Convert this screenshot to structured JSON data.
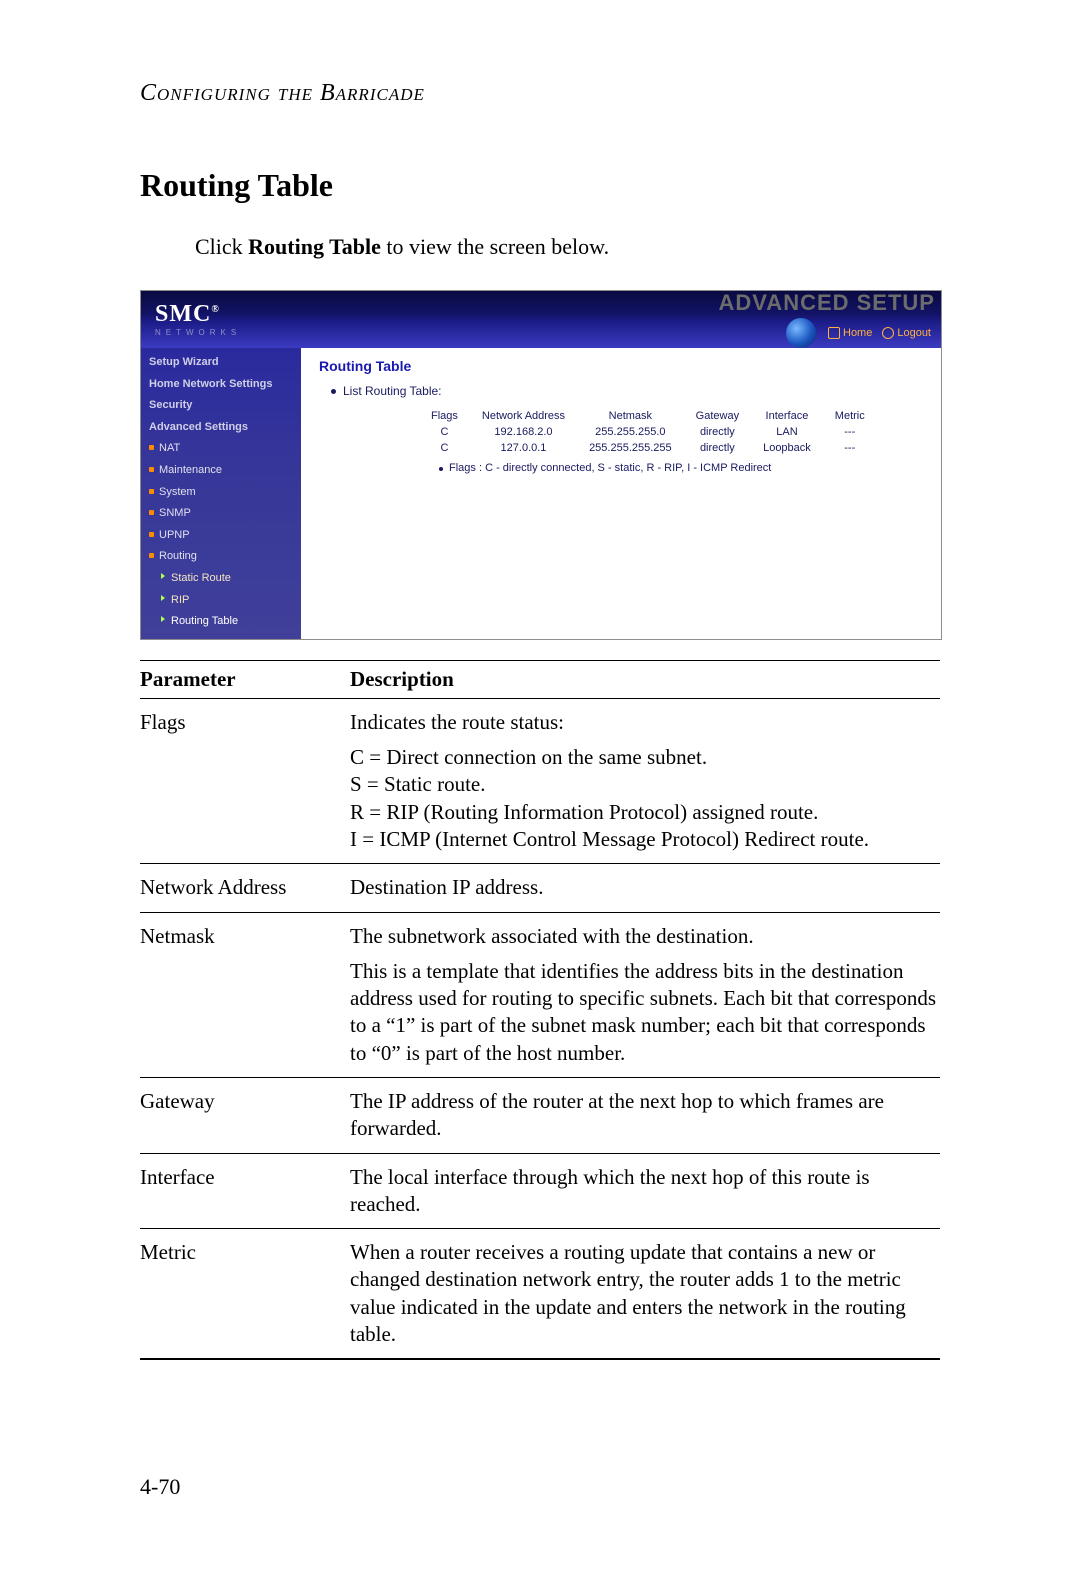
{
  "doc": {
    "running_head": "Configuring the Barricade",
    "section_title": "Routing Table",
    "intro_pre": "Click ",
    "intro_bold": "Routing Table",
    "intro_post": " to view the screen below.",
    "page_num": "4-70"
  },
  "screenshot": {
    "logo_main": "SMC",
    "logo_reg": "®",
    "logo_sub": "Networks",
    "header_title": "ADVANCED SETUP",
    "links": {
      "home": "Home",
      "logout": "Logout"
    },
    "sidebar": {
      "setup_wizard": "Setup Wizard",
      "home_network_settings": "Home Network Settings",
      "security": "Security",
      "advanced_settings": "Advanced Settings",
      "nat": "NAT",
      "maintenance": "Maintenance",
      "system": "System",
      "snmp": "SNMP",
      "upnp": "UPNP",
      "routing": "Routing",
      "static_route": "Static Route",
      "rip": "RIP",
      "routing_table": "Routing Table"
    },
    "main": {
      "title": "Routing Table",
      "bullet": "List Routing Table:",
      "table": {
        "columns": [
          "Flags",
          "Network Address",
          "Netmask",
          "Gateway",
          "Interface",
          "Metric"
        ],
        "rows": [
          [
            "C",
            "192.168.2.0",
            "255.255.255.0",
            "directly",
            "LAN",
            "---"
          ],
          [
            "C",
            "127.0.0.1",
            "255.255.255.255",
            "directly",
            "Loopback",
            "---"
          ]
        ]
      },
      "legend": "Flags :  C - directly connected, S - static, R - RIP, I - ICMP Redirect"
    },
    "colors": {
      "top_bg_dark": "#0a0a40",
      "top_bg_light": "#3a3ac0",
      "sidebar_bg": "#363699",
      "adv_text": "#6c6c6c",
      "link_color": "#ffb040",
      "main_title": "#1a1ab0",
      "text": "#1a1a60"
    }
  },
  "param_table": {
    "header": {
      "param": "Parameter",
      "desc": "Description"
    },
    "flags": {
      "name": "Flags",
      "d1": "Indicates the route status:",
      "d2": "C = Direct connection on the same subnet.",
      "d3": "S = Static route.",
      "d4": "R = RIP (Routing Information Protocol) assigned route.",
      "d5": "I = ICMP (Internet Control Message Protocol) Redirect route."
    },
    "network_address": {
      "name": "Network Address",
      "desc": "Destination IP address."
    },
    "netmask": {
      "name": "Netmask",
      "d1": "The subnetwork associated with the destination.",
      "d2": "This is a template that identifies the address bits in the destination address used for routing to specific subnets. Each bit that corresponds to a “1” is part of the subnet mask number; each bit that corresponds to “0” is part of the host number."
    },
    "gateway": {
      "name": "Gateway",
      "desc": "The IP address of the router at the next hop to which frames are forwarded."
    },
    "interface": {
      "name": "Interface",
      "desc": "The local interface through which the next hop of this route is reached."
    },
    "metric": {
      "name": "Metric",
      "desc": "When a router receives a routing update that contains a new or changed destination network entry, the router adds 1 to the metric value indicated in the update and enters the network in the routing table."
    }
  }
}
